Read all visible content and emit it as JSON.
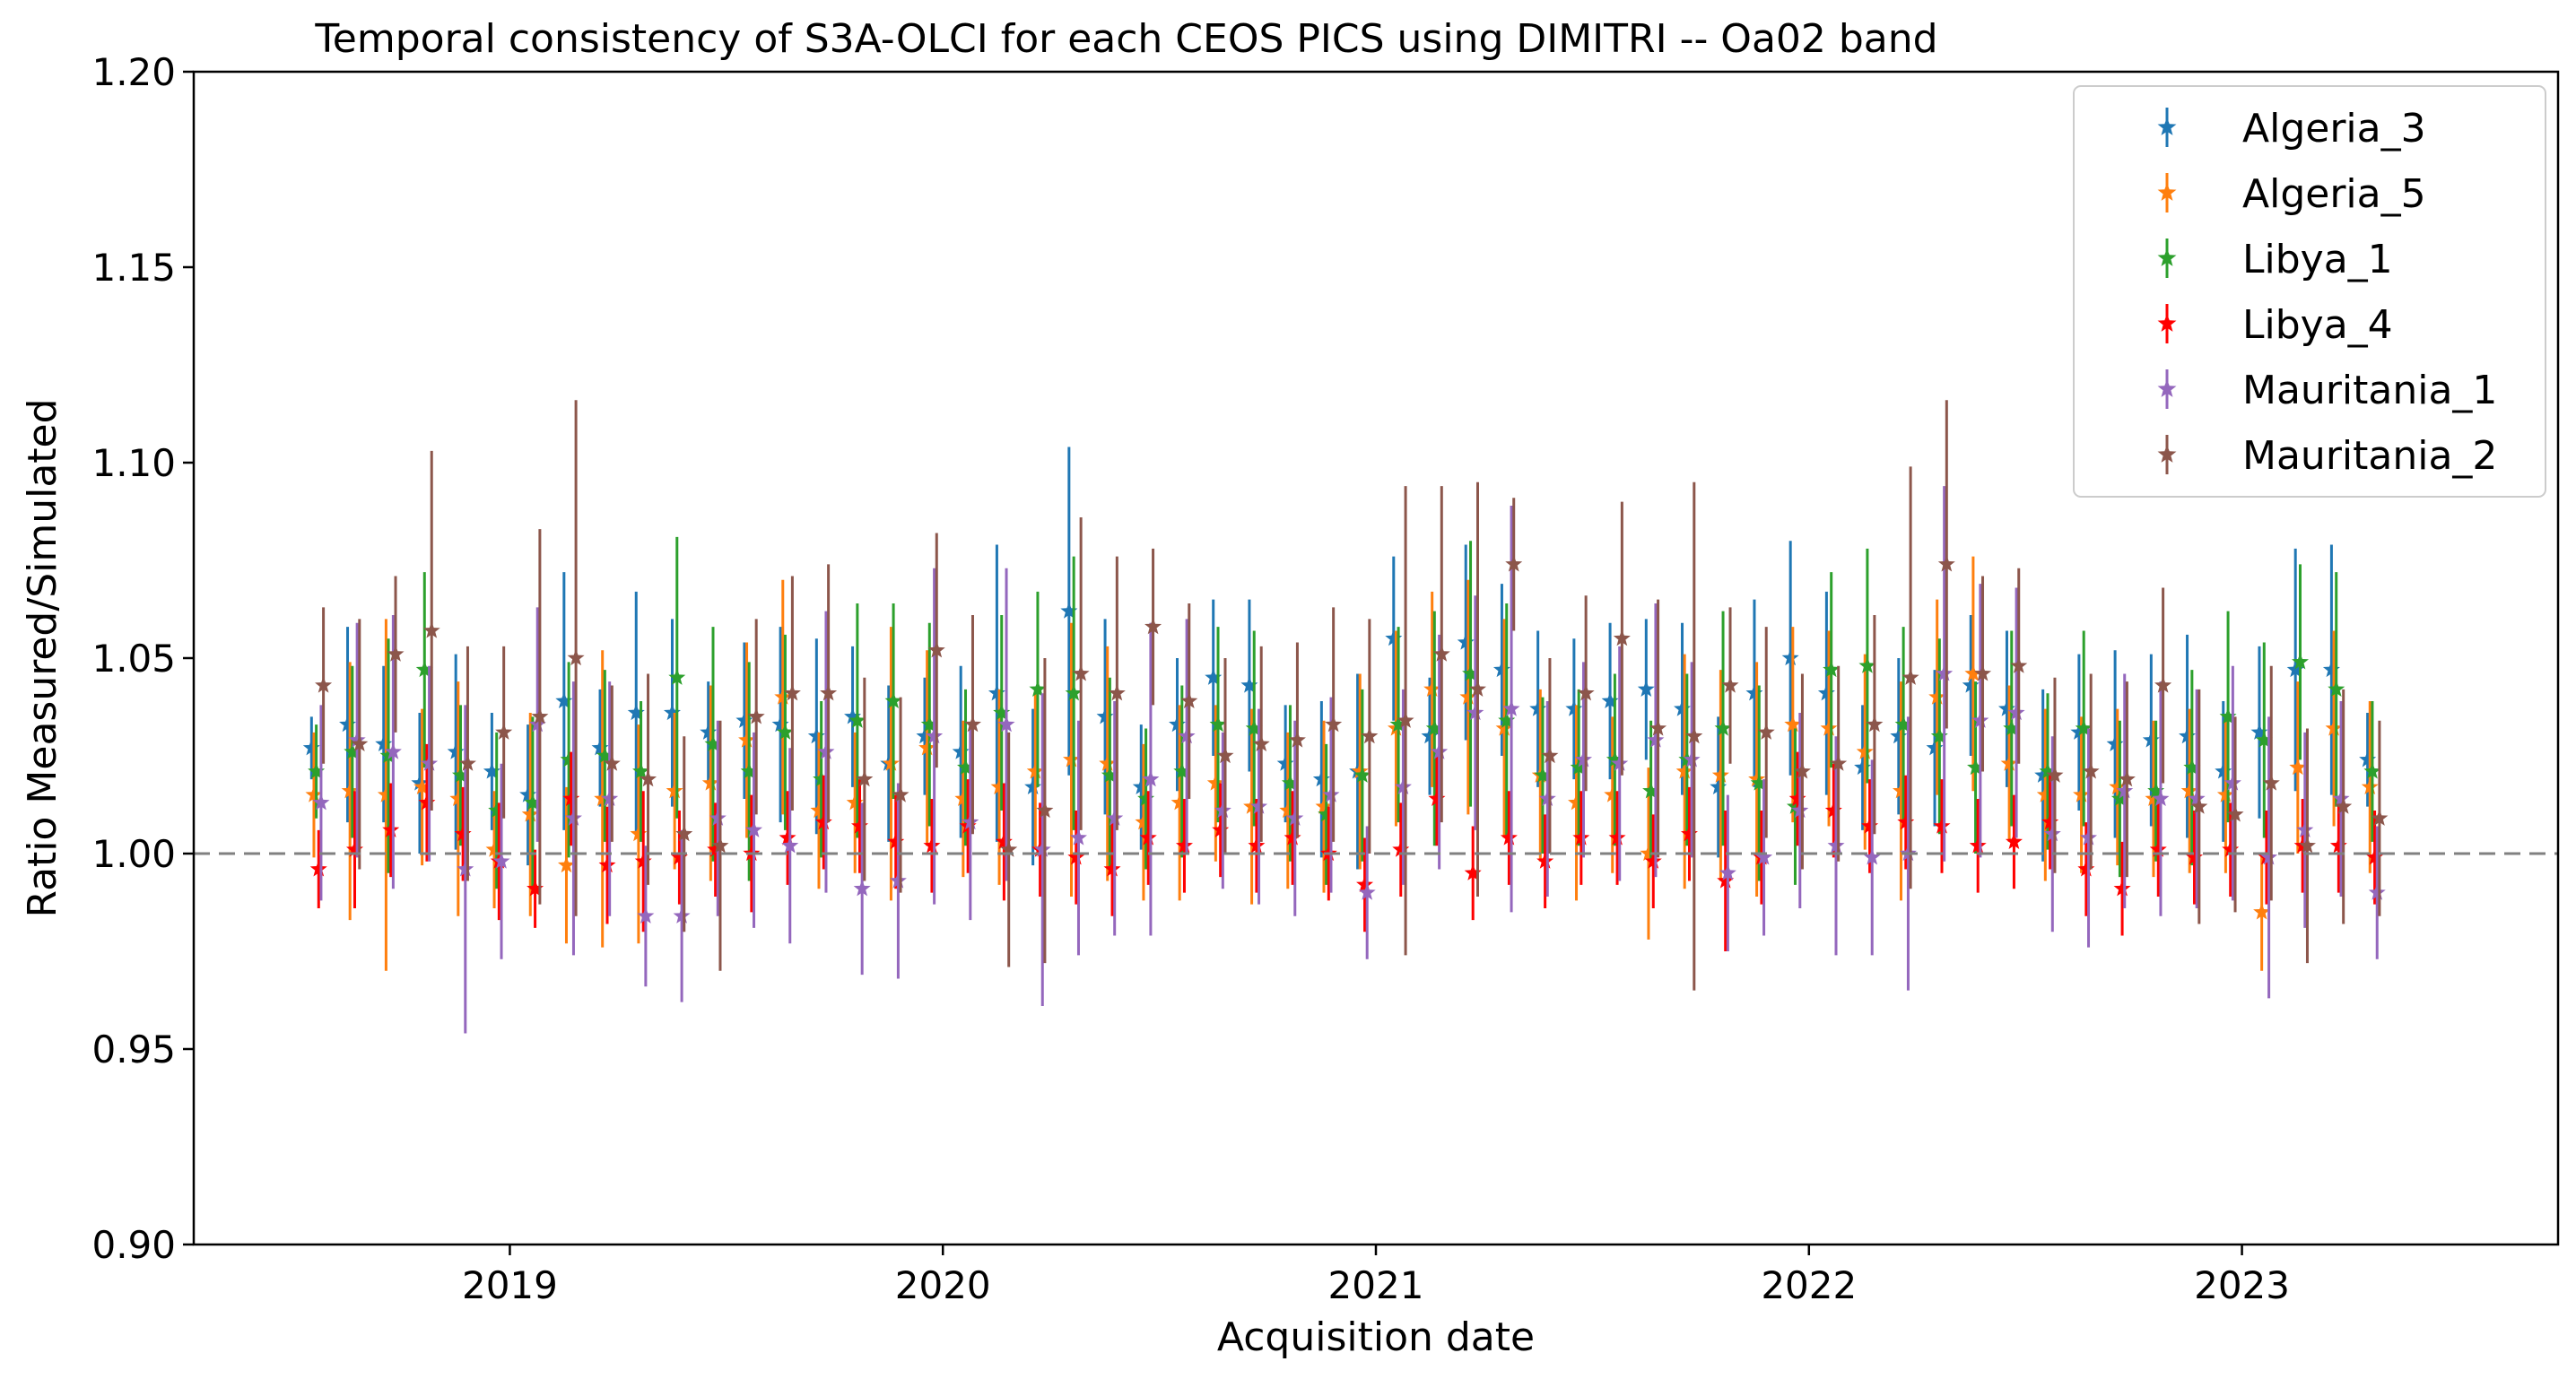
{
  "chart_data": {
    "type": "scatter",
    "title": "Temporal consistency of S3A-OLCI for each CEOS PICS using DIMITRI -- Oa02 band",
    "xlabel": "Acquisition date",
    "ylabel": "Ratio Measured/Simulated",
    "xlim": [
      2018.27,
      2023.73
    ],
    "ylim": [
      0.9,
      1.2
    ],
    "x_tick_values": [
      2019,
      2020,
      2021,
      2022,
      2023
    ],
    "x_tick_labels": [
      "2019",
      "2020",
      "2021",
      "2022",
      "2023"
    ],
    "y_tick_values": [
      0.9,
      0.95,
      1.0,
      1.05,
      1.1,
      1.15,
      1.2
    ],
    "y_tick_labels": [
      "0.90",
      "0.95",
      "1.00",
      "1.05",
      "1.10",
      "1.15",
      "1.20"
    ],
    "reference_line": {
      "y": 1.0,
      "style": "dashed",
      "color": "#808080"
    },
    "marker": "star with vertical error bar",
    "legend": {
      "position": "top-right"
    },
    "time_axis": {
      "start": 2018.542,
      "step": 0.0833,
      "series_offsets": [
        0.0,
        0.0055,
        0.011,
        0.0165,
        0.022,
        0.0275
      ]
    },
    "series": [
      {
        "name": "Algeria_3",
        "color": "#1f77b4",
        "values": [
          1.027,
          1.033,
          1.028,
          1.018,
          1.026,
          1.021,
          1.015,
          1.039,
          1.027,
          1.036,
          1.036,
          1.031,
          1.034,
          1.033,
          1.03,
          1.035,
          1.023,
          1.03,
          1.026,
          1.041,
          1.017,
          1.062,
          1.035,
          1.017,
          1.033,
          1.045,
          1.043,
          1.023,
          1.019,
          1.021,
          1.055,
          1.03,
          1.054,
          1.047,
          1.037,
          1.037,
          1.039,
          1.042,
          1.037,
          1.017,
          1.041,
          1.05,
          1.041,
          1.022,
          1.03,
          1.027,
          1.043,
          1.037,
          1.02,
          1.031,
          1.028,
          1.029,
          1.03,
          1.021,
          1.031,
          1.047,
          1.047,
          1.024
        ],
        "errors": [
          0.008,
          0.025,
          0.02,
          0.018,
          0.025,
          0.015,
          0.018,
          0.033,
          0.015,
          0.031,
          0.024,
          0.013,
          0.02,
          0.025,
          0.025,
          0.018,
          0.02,
          0.015,
          0.022,
          0.038,
          0.02,
          0.042,
          0.025,
          0.016,
          0.017,
          0.02,
          0.022,
          0.015,
          0.02,
          0.025,
          0.021,
          0.015,
          0.025,
          0.022,
          0.02,
          0.018,
          0.02,
          0.018,
          0.022,
          0.018,
          0.024,
          0.03,
          0.026,
          0.016,
          0.02,
          0.02,
          0.018,
          0.02,
          0.022,
          0.02,
          0.024,
          0.022,
          0.026,
          0.018,
          0.022,
          0.031,
          0.032,
          0.012
        ]
      },
      {
        "name": "Algeria_5",
        "color": "#ff7f0e",
        "values": [
          1.015,
          1.016,
          1.015,
          1.017,
          1.014,
          1.001,
          1.01,
          0.997,
          1.014,
          1.005,
          1.016,
          1.018,
          1.029,
          1.04,
          1.011,
          1.013,
          1.023,
          1.027,
          1.014,
          1.017,
          1.021,
          1.024,
          1.023,
          1.008,
          1.013,
          1.018,
          1.012,
          1.011,
          1.012,
          1.021,
          1.032,
          1.042,
          1.04,
          1.032,
          1.02,
          1.013,
          1.015,
          1.0,
          1.021,
          1.02,
          1.019,
          1.033,
          1.032,
          1.026,
          1.016,
          1.04,
          1.046,
          1.023,
          1.015,
          1.015,
          1.017,
          1.014,
          1.016,
          1.015,
          0.985,
          1.022,
          1.032,
          1.017
        ],
        "errors": [
          0.016,
          0.033,
          0.045,
          0.02,
          0.03,
          0.015,
          0.026,
          0.02,
          0.038,
          0.028,
          0.02,
          0.025,
          0.025,
          0.03,
          0.02,
          0.018,
          0.035,
          0.025,
          0.02,
          0.025,
          0.02,
          0.035,
          0.03,
          0.02,
          0.025,
          0.02,
          0.025,
          0.02,
          0.022,
          0.025,
          0.025,
          0.025,
          0.03,
          0.028,
          0.022,
          0.025,
          0.02,
          0.022,
          0.03,
          0.027,
          0.03,
          0.025,
          0.025,
          0.025,
          0.028,
          0.025,
          0.03,
          0.02,
          0.022,
          0.02,
          0.02,
          0.02,
          0.021,
          0.02,
          0.015,
          0.022,
          0.025,
          0.022
        ]
      },
      {
        "name": "Libya_1",
        "color": "#2ca02c",
        "values": [
          1.021,
          1.026,
          1.025,
          1.047,
          1.02,
          1.011,
          1.013,
          1.024,
          1.025,
          1.021,
          1.045,
          1.028,
          1.021,
          1.031,
          1.019,
          1.034,
          1.039,
          1.033,
          1.022,
          1.036,
          1.042,
          1.041,
          1.02,
          1.014,
          1.021,
          1.033,
          1.032,
          1.018,
          1.01,
          1.02,
          1.033,
          1.032,
          1.046,
          1.034,
          1.02,
          1.022,
          1.024,
          1.016,
          1.024,
          1.032,
          1.018,
          1.012,
          1.047,
          1.048,
          1.033,
          1.03,
          1.022,
          1.032,
          1.021,
          1.032,
          1.014,
          1.016,
          1.022,
          1.035,
          1.029,
          1.049,
          1.042,
          1.021
        ],
        "errors": [
          0.012,
          0.022,
          0.03,
          0.025,
          0.018,
          0.02,
          0.022,
          0.025,
          0.022,
          0.018,
          0.036,
          0.03,
          0.028,
          0.025,
          0.02,
          0.03,
          0.025,
          0.026,
          0.02,
          0.025,
          0.025,
          0.035,
          0.025,
          0.018,
          0.022,
          0.025,
          0.025,
          0.02,
          0.018,
          0.022,
          0.025,
          0.03,
          0.034,
          0.03,
          0.02,
          0.02,
          0.022,
          0.018,
          0.022,
          0.03,
          0.025,
          0.02,
          0.025,
          0.03,
          0.025,
          0.025,
          0.022,
          0.025,
          0.02,
          0.025,
          0.02,
          0.018,
          0.025,
          0.027,
          0.025,
          0.025,
          0.03,
          0.018
        ]
      },
      {
        "name": "Libya_4",
        "color": "#ff0000",
        "values": [
          0.996,
          1.001,
          1.006,
          1.013,
          1.005,
          0.998,
          0.991,
          1.014,
          0.997,
          0.998,
          0.999,
          1.001,
          1.0,
          1.004,
          1.008,
          1.007,
          1.003,
          1.002,
          1.007,
          1.003,
          1.001,
          0.999,
          0.996,
          1.004,
          1.002,
          1.006,
          1.002,
          1.004,
          1.0,
          0.992,
          1.001,
          1.014,
          0.995,
          1.004,
          0.998,
          1.004,
          1.004,
          0.998,
          1.005,
          0.993,
          0.999,
          1.014,
          1.011,
          1.007,
          1.008,
          1.007,
          1.002,
          1.003,
          1.008,
          0.996,
          0.991,
          1.001,
          0.999,
          1.001,
          0.999,
          1.002,
          1.002,
          0.999
        ],
        "errors": [
          0.01,
          0.015,
          0.012,
          0.015,
          0.012,
          0.015,
          0.01,
          0.012,
          0.015,
          0.018,
          0.012,
          0.012,
          0.015,
          0.012,
          0.012,
          0.012,
          0.012,
          0.012,
          0.012,
          0.015,
          0.012,
          0.012,
          0.012,
          0.012,
          0.012,
          0.012,
          0.012,
          0.012,
          0.012,
          0.012,
          0.012,
          0.012,
          0.012,
          0.012,
          0.012,
          0.012,
          0.012,
          0.012,
          0.012,
          0.018,
          0.012,
          0.012,
          0.012,
          0.012,
          0.012,
          0.012,
          0.012,
          0.012,
          0.012,
          0.012,
          0.012,
          0.012,
          0.012,
          0.012,
          0.012,
          0.012,
          0.012,
          0.012
        ]
      },
      {
        "name": "Mauritania_1",
        "color": "#9467bd",
        "values": [
          1.013,
          1.029,
          1.026,
          1.023,
          0.996,
          0.998,
          1.033,
          1.009,
          1.014,
          0.984,
          0.984,
          1.009,
          1.006,
          1.002,
          1.026,
          0.991,
          0.993,
          1.03,
          1.008,
          1.033,
          1.001,
          1.004,
          1.009,
          1.019,
          1.03,
          1.011,
          1.012,
          1.009,
          1.015,
          0.99,
          1.017,
          1.026,
          1.036,
          1.037,
          1.014,
          1.024,
          1.023,
          1.029,
          1.024,
          0.995,
          0.999,
          1.011,
          1.002,
          0.999,
          1.0,
          1.046,
          1.034,
          1.036,
          1.005,
          1.004,
          1.016,
          1.014,
          1.014,
          1.018,
          0.999,
          1.006,
          1.014,
          0.99
        ],
        "errors": [
          0.025,
          0.03,
          0.035,
          0.025,
          0.042,
          0.025,
          0.03,
          0.035,
          0.03,
          0.018,
          0.022,
          0.025,
          0.025,
          0.025,
          0.036,
          0.022,
          0.025,
          0.043,
          0.025,
          0.04,
          0.04,
          0.03,
          0.03,
          0.04,
          0.03,
          0.02,
          0.025,
          0.025,
          0.025,
          0.017,
          0.025,
          0.03,
          0.03,
          0.052,
          0.025,
          0.025,
          0.03,
          0.035,
          0.025,
          0.02,
          0.02,
          0.025,
          0.028,
          0.025,
          0.035,
          0.048,
          0.035,
          0.032,
          0.025,
          0.028,
          0.03,
          0.03,
          0.028,
          0.03,
          0.036,
          0.025,
          0.025,
          0.017
        ]
      },
      {
        "name": "Mauritania_2",
        "color": "#8c564b",
        "values": [
          1.043,
          1.028,
          1.051,
          1.057,
          1.023,
          1.031,
          1.035,
          1.05,
          1.023,
          1.019,
          1.005,
          1.002,
          1.035,
          1.041,
          1.041,
          1.019,
          1.015,
          1.052,
          1.033,
          1.001,
          1.011,
          1.046,
          1.041,
          1.058,
          1.039,
          1.025,
          1.028,
          1.029,
          1.033,
          1.03,
          1.034,
          1.051,
          1.042,
          1.074,
          1.025,
          1.041,
          1.055,
          1.032,
          1.03,
          1.043,
          1.031,
          1.021,
          1.023,
          1.033,
          1.045,
          1.074,
          1.046,
          1.048,
          1.02,
          1.021,
          1.019,
          1.043,
          1.012,
          1.01,
          1.018,
          1.002,
          1.012,
          1.009
        ],
        "errors": [
          0.02,
          0.032,
          0.02,
          0.046,
          0.03,
          0.022,
          0.048,
          0.066,
          0.02,
          0.027,
          0.025,
          0.032,
          0.025,
          0.03,
          0.033,
          0.026,
          0.025,
          0.03,
          0.028,
          0.03,
          0.039,
          0.04,
          0.035,
          0.02,
          0.025,
          0.025,
          0.025,
          0.025,
          0.03,
          0.03,
          0.06,
          0.043,
          0.053,
          0.017,
          0.025,
          0.025,
          0.035,
          0.033,
          0.065,
          0.02,
          0.027,
          0.025,
          0.025,
          0.028,
          0.054,
          0.042,
          0.025,
          0.025,
          0.025,
          0.025,
          0.025,
          0.025,
          0.03,
          0.025,
          0.03,
          0.03,
          0.03,
          0.025
        ]
      }
    ]
  }
}
